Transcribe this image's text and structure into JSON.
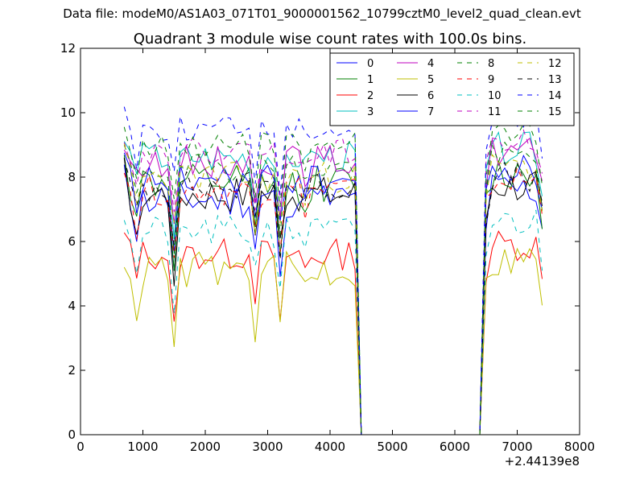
{
  "header": {
    "data_file_label": "Data file: modeM0/AS1A03_071T01_9000001562_10799cztM0_level2_quad_clean.evt"
  },
  "chart_data": {
    "type": "line",
    "title": "Quadrant 3 module wise count rates with 100.0s bins.",
    "xlabel": "",
    "ylabel": "",
    "x_offset_label": "+2.44139e8",
    "xlim": [
      0,
      8000
    ],
    "ylim": [
      0,
      12
    ],
    "x_ticks": [
      "0",
      "1000",
      "2000",
      "3000",
      "4000",
      "5000",
      "6000",
      "7000",
      "8000"
    ],
    "y_ticks": [
      "0",
      "2",
      "4",
      "6",
      "8",
      "10",
      "12"
    ],
    "grid": false,
    "legend_position": "top-right",
    "segment_boundaries": {
      "active_1": [
        700,
        4400
      ],
      "drop_end": 4500,
      "flat_end": 6400,
      "rise_end": 6500,
      "active_2": [
        6500,
        7400
      ]
    },
    "series": [
      {
        "name": "0",
        "color": "#0000ff",
        "dash": "solid",
        "level": 7.3,
        "amp": 0.6,
        "seed": 11
      },
      {
        "name": "1",
        "color": "#008000",
        "dash": "solid",
        "level": 7.8,
        "amp": 0.6,
        "seed": 12
      },
      {
        "name": "2",
        "color": "#ff0000",
        "dash": "solid",
        "level": 5.6,
        "amp": 0.5,
        "seed": 13
      },
      {
        "name": "3",
        "color": "#00bfbf",
        "dash": "solid",
        "level": 8.6,
        "amp": 0.5,
        "seed": 14
      },
      {
        "name": "4",
        "color": "#bf00bf",
        "dash": "solid",
        "level": 8.5,
        "amp": 0.5,
        "seed": 15
      },
      {
        "name": "5",
        "color": "#bfbf00",
        "dash": "solid",
        "level": 5.1,
        "amp": 0.6,
        "seed": 16
      },
      {
        "name": "6",
        "color": "#000000",
        "dash": "solid",
        "level": 7.5,
        "amp": 0.6,
        "seed": 17
      },
      {
        "name": "7",
        "color": "#0000ff",
        "dash": "solid",
        "level": 7.9,
        "amp": 0.5,
        "seed": 18
      },
      {
        "name": "8",
        "color": "#008000",
        "dash": "dashed",
        "level": 8.3,
        "amp": 0.5,
        "seed": 19
      },
      {
        "name": "9",
        "color": "#ff0000",
        "dash": "dashed",
        "level": 7.6,
        "amp": 0.5,
        "seed": 20
      },
      {
        "name": "10",
        "color": "#00bfbf",
        "dash": "dashed",
        "level": 6.3,
        "amp": 0.5,
        "seed": 21
      },
      {
        "name": "11",
        "color": "#bf00bf",
        "dash": "dashed",
        "level": 8.8,
        "amp": 0.4,
        "seed": 22
      },
      {
        "name": "12",
        "color": "#bfbf00",
        "dash": "dashed",
        "level": 8.0,
        "amp": 0.5,
        "seed": 23
      },
      {
        "name": "13",
        "color": "#000000",
        "dash": "dashed",
        "level": 7.7,
        "amp": 0.5,
        "seed": 24
      },
      {
        "name": "14",
        "color": "#0000ff",
        "dash": "dashed",
        "level": 9.5,
        "amp": 0.4,
        "seed": 25
      },
      {
        "name": "15",
        "color": "#008000",
        "dash": "dashed",
        "level": 9.0,
        "amp": 0.4,
        "seed": 26
      }
    ]
  }
}
